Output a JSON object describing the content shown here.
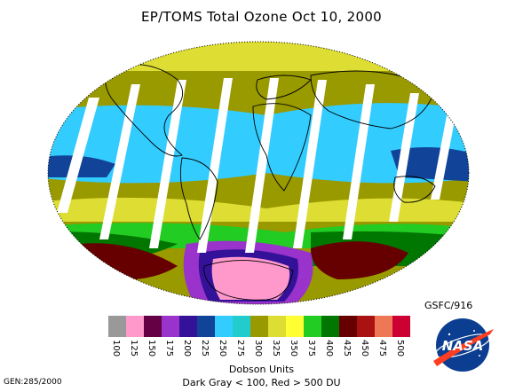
{
  "title": "EP/TOMS Total Ozone Oct 10, 2000",
  "scale": {
    "ticks": [
      "100",
      "125",
      "150",
      "175",
      "200",
      "225",
      "250",
      "275",
      "300",
      "325",
      "350",
      "375",
      "400",
      "425",
      "450",
      "475",
      "500"
    ],
    "colors": [
      "#999999",
      "#ff99cc",
      "#660044",
      "#9933cc",
      "#331199",
      "#114499",
      "#33ccff",
      "#22cccc",
      "#999900",
      "#dddd33",
      "#ffff33",
      "#22cc22",
      "#007700",
      "#660000",
      "#aa1111",
      "#ee7755",
      "#cc0033"
    ],
    "units_label": "Dobson Units",
    "note": "Dark Gray < 100, Red > 500 DU"
  },
  "credit": "GSFC/916",
  "gen": "GEN:285/2000",
  "logo_text": "NASA",
  "icons": {
    "logo": "nasa-logo-icon"
  }
}
